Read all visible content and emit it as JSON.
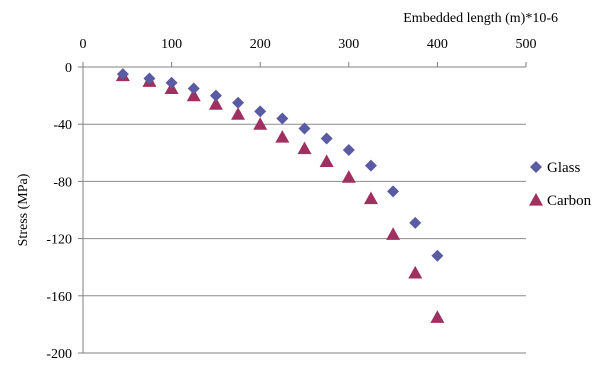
{
  "chart_data": {
    "type": "scatter",
    "xlabel": "Embedded length  (m)*10-6",
    "ylabel": "Stress  (MPa)",
    "xlim": [
      0,
      500
    ],
    "ylim": [
      -200,
      0
    ],
    "x_axis_position": "top",
    "x_ticks": [
      0,
      100,
      200,
      300,
      400,
      500
    ],
    "y_ticks": [
      0,
      -40,
      -80,
      -120,
      -160,
      -200
    ],
    "grid": "horizontal",
    "legend_position": "right",
    "series": [
      {
        "name": "Glass",
        "marker": "diamond",
        "color": "#5b5ba3",
        "x": [
          45,
          75,
          100,
          125,
          150,
          175,
          200,
          225,
          250,
          275,
          300,
          325,
          350,
          375,
          400
        ],
        "y": [
          -5,
          -8,
          -11,
          -15,
          -20,
          -25,
          -31,
          -36,
          -43,
          -50,
          -58,
          -69,
          -87,
          -109,
          -132
        ]
      },
      {
        "name": "Carbon",
        "marker": "triangle",
        "color": "#a03060",
        "x": [
          45,
          75,
          100,
          125,
          150,
          175,
          200,
          225,
          250,
          275,
          300,
          325,
          350,
          375,
          400
        ],
        "y": [
          -6,
          -10,
          -15,
          -20,
          -26,
          -33,
          -40,
          -49,
          -57,
          -66,
          -77,
          -92,
          -117,
          -144,
          -175
        ]
      }
    ]
  }
}
